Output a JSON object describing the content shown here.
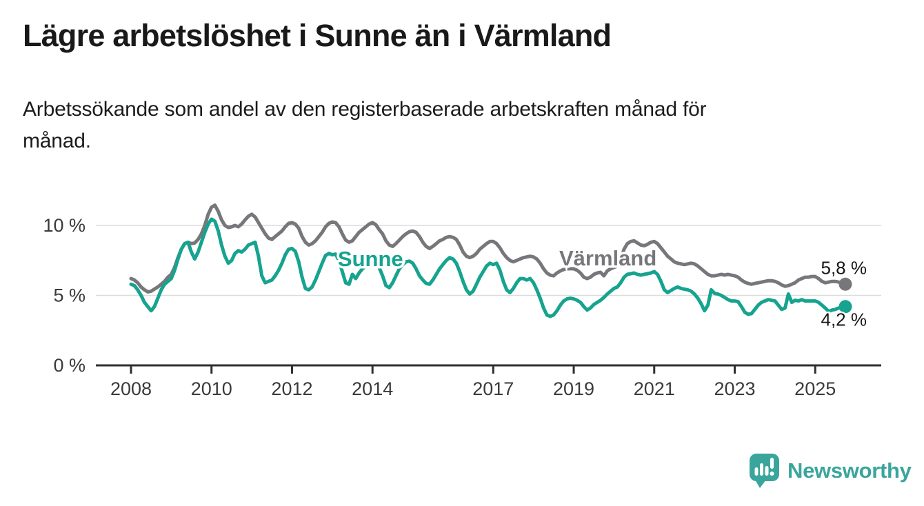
{
  "header": {
    "title": "Lägre arbetslöshet i Sunne än i Värmland",
    "subtitle_lines": [
      "Arbetssökande som andel av den registerbaserade arbetskraften månad för",
      "månad."
    ]
  },
  "chart_data": {
    "type": "line",
    "title": "Lägre arbetslöshet i Sunne än i Värmland",
    "subtitle": "Arbetssökande som andel av den registerbaserade arbetskraften månad för månad.",
    "x_unit": "month",
    "x_range": [
      "2008-01",
      "2025-10"
    ],
    "ylim": [
      0,
      11.8
    ],
    "grid": "horizontal",
    "legend_position": "inline-labels",
    "yticks": [
      {
        "value": 0,
        "label": "0 %"
      },
      {
        "value": 5,
        "label": "5 %"
      },
      {
        "value": 10,
        "label": "10 %"
      }
    ],
    "xticks": [
      {
        "year": 2008,
        "label": "2008"
      },
      {
        "year": 2010,
        "label": "2010"
      },
      {
        "year": 2012,
        "label": "2012"
      },
      {
        "year": 2014,
        "label": "2014"
      },
      {
        "year": 2017,
        "label": "2017"
      },
      {
        "year": 2019,
        "label": "2019"
      },
      {
        "year": 2021,
        "label": "2021"
      },
      {
        "year": 2023,
        "label": "2023"
      },
      {
        "year": 2025,
        "label": "2025"
      }
    ],
    "series": [
      {
        "name": "Värmland",
        "color": "#77777b",
        "end_label": "5,8 %",
        "end_value": 5.8,
        "end_label_side": "above",
        "label_anchor": {
          "year": 2019.85,
          "value": 7.5
        },
        "values": [
          6.2,
          6.1,
          5.9,
          5.6,
          5.4,
          5.25,
          5.3,
          5.45,
          5.6,
          5.8,
          6.0,
          6.3,
          6.5,
          7.0,
          7.7,
          8.3,
          8.7,
          8.8,
          8.7,
          8.75,
          9.0,
          9.4,
          10.0,
          10.8,
          11.3,
          11.45,
          11.0,
          10.4,
          10.0,
          9.85,
          9.9,
          10.0,
          9.9,
          10.1,
          10.4,
          10.65,
          10.8,
          10.6,
          10.2,
          9.8,
          9.4,
          9.1,
          9.0,
          9.2,
          9.4,
          9.6,
          9.9,
          10.15,
          10.2,
          10.1,
          9.8,
          9.2,
          8.8,
          8.6,
          8.7,
          8.9,
          9.2,
          9.5,
          9.9,
          10.15,
          10.25,
          10.2,
          9.9,
          9.4,
          8.95,
          8.8,
          8.9,
          9.2,
          9.5,
          9.7,
          9.9,
          10.1,
          10.2,
          10.05,
          9.7,
          9.4,
          8.9,
          8.6,
          8.5,
          8.7,
          8.95,
          9.2,
          9.4,
          9.55,
          9.6,
          9.5,
          9.2,
          8.8,
          8.5,
          8.35,
          8.5,
          8.7,
          8.9,
          9.0,
          9.15,
          9.2,
          9.15,
          9.0,
          8.6,
          8.1,
          7.8,
          7.7,
          7.8,
          8.0,
          8.3,
          8.5,
          8.7,
          8.85,
          8.85,
          8.7,
          8.4,
          8.0,
          7.7,
          7.5,
          7.4,
          7.5,
          7.6,
          7.7,
          7.75,
          7.8,
          7.75,
          7.6,
          7.3,
          6.9,
          6.6,
          6.45,
          6.4,
          6.6,
          6.75,
          6.85,
          6.9,
          6.9,
          6.9,
          6.8,
          6.6,
          6.3,
          6.2,
          6.3,
          6.5,
          6.6,
          6.65,
          6.4,
          6.75,
          6.9,
          7.0,
          7.1,
          7.5,
          8.3,
          8.7,
          8.85,
          8.9,
          8.75,
          8.6,
          8.55,
          8.65,
          8.8,
          8.85,
          8.7,
          8.4,
          8.1,
          7.8,
          7.6,
          7.4,
          7.3,
          7.25,
          7.2,
          7.25,
          7.3,
          7.25,
          7.1,
          6.9,
          6.7,
          6.5,
          6.4,
          6.4,
          6.45,
          6.5,
          6.45,
          6.5,
          6.45,
          6.4,
          6.3,
          6.1,
          5.95,
          5.85,
          5.8,
          5.85,
          5.9,
          5.95,
          6.0,
          6.05,
          6.05,
          6.0,
          5.9,
          5.75,
          5.65,
          5.7,
          5.8,
          5.9,
          6.1,
          6.2,
          6.3,
          6.3,
          6.35,
          6.35,
          6.2,
          6.0,
          5.9,
          5.95,
          6.0,
          6.0,
          5.95,
          5.85,
          5.8
        ]
      },
      {
        "name": "Sunne",
        "color": "#16a38f",
        "end_label": "4,2 %",
        "end_value": 4.2,
        "end_label_side": "below",
        "label_anchor": {
          "year": 2013.95,
          "value": 7.45
        },
        "values": [
          5.8,
          5.7,
          5.4,
          5.0,
          4.5,
          4.2,
          3.9,
          4.2,
          4.8,
          5.4,
          5.8,
          6.0,
          6.2,
          6.8,
          7.6,
          8.3,
          8.7,
          8.8,
          8.1,
          7.6,
          8.1,
          8.8,
          9.5,
          10.1,
          10.45,
          10.3,
          9.6,
          8.6,
          7.8,
          7.3,
          7.5,
          8.0,
          8.2,
          8.1,
          8.3,
          8.6,
          8.7,
          8.8,
          7.8,
          6.4,
          5.9,
          6.0,
          6.1,
          6.4,
          6.8,
          7.3,
          7.9,
          8.3,
          8.35,
          8.15,
          7.4,
          6.3,
          5.5,
          5.4,
          5.6,
          6.1,
          6.7,
          7.3,
          7.85,
          8.0,
          7.9,
          7.95,
          7.5,
          6.7,
          5.9,
          5.8,
          6.5,
          6.2,
          6.6,
          6.9,
          7.1,
          7.25,
          7.3,
          7.2,
          7.0,
          6.4,
          5.7,
          5.55,
          5.9,
          6.4,
          6.9,
          7.2,
          7.4,
          7.45,
          7.3,
          6.9,
          6.4,
          6.1,
          5.85,
          5.8,
          6.1,
          6.5,
          6.9,
          7.2,
          7.5,
          7.7,
          7.6,
          7.3,
          6.7,
          6.0,
          5.4,
          5.1,
          5.3,
          5.8,
          6.3,
          6.7,
          7.1,
          7.3,
          7.2,
          7.3,
          6.8,
          6.0,
          5.4,
          5.2,
          5.5,
          5.9,
          6.2,
          6.2,
          6.1,
          6.2,
          5.9,
          5.4,
          4.8,
          4.1,
          3.6,
          3.5,
          3.6,
          3.9,
          4.3,
          4.6,
          4.75,
          4.8,
          4.75,
          4.65,
          4.5,
          4.2,
          3.95,
          4.1,
          4.35,
          4.5,
          4.65,
          4.85,
          5.1,
          5.3,
          5.5,
          5.6,
          5.9,
          6.3,
          6.5,
          6.55,
          6.6,
          6.5,
          6.45,
          6.5,
          6.55,
          6.6,
          6.7,
          6.5,
          6.0,
          5.4,
          5.2,
          5.35,
          5.5,
          5.6,
          5.5,
          5.45,
          5.4,
          5.3,
          5.1,
          4.8,
          4.4,
          3.9,
          4.3,
          5.4,
          5.15,
          5.1,
          5.0,
          4.85,
          4.7,
          4.6,
          4.6,
          4.55,
          4.2,
          3.8,
          3.65,
          3.7,
          4.0,
          4.3,
          4.5,
          4.6,
          4.7,
          4.65,
          4.6,
          4.3,
          4.0,
          4.1,
          5.1,
          4.5,
          4.65,
          4.6,
          4.7,
          4.6,
          4.6,
          4.6,
          4.6,
          4.5,
          4.3,
          4.1,
          3.85,
          3.95,
          4.0,
          4.1,
          4.15,
          4.2
        ]
      }
    ]
  },
  "footer": {
    "brand": "Newsworthy"
  },
  "colors": {
    "background": "#ffffff",
    "title_text": "#191919",
    "subtitle_text": "#1c1c1c",
    "axis_line": "#2f2f2f",
    "gridline": "#dcdcdc",
    "tick_text": "#3a3a3a",
    "end_label_text": "#161616",
    "varmland_line": "#77777b",
    "sunne_line": "#16a38f",
    "brand_teal": "#3aa59c"
  }
}
